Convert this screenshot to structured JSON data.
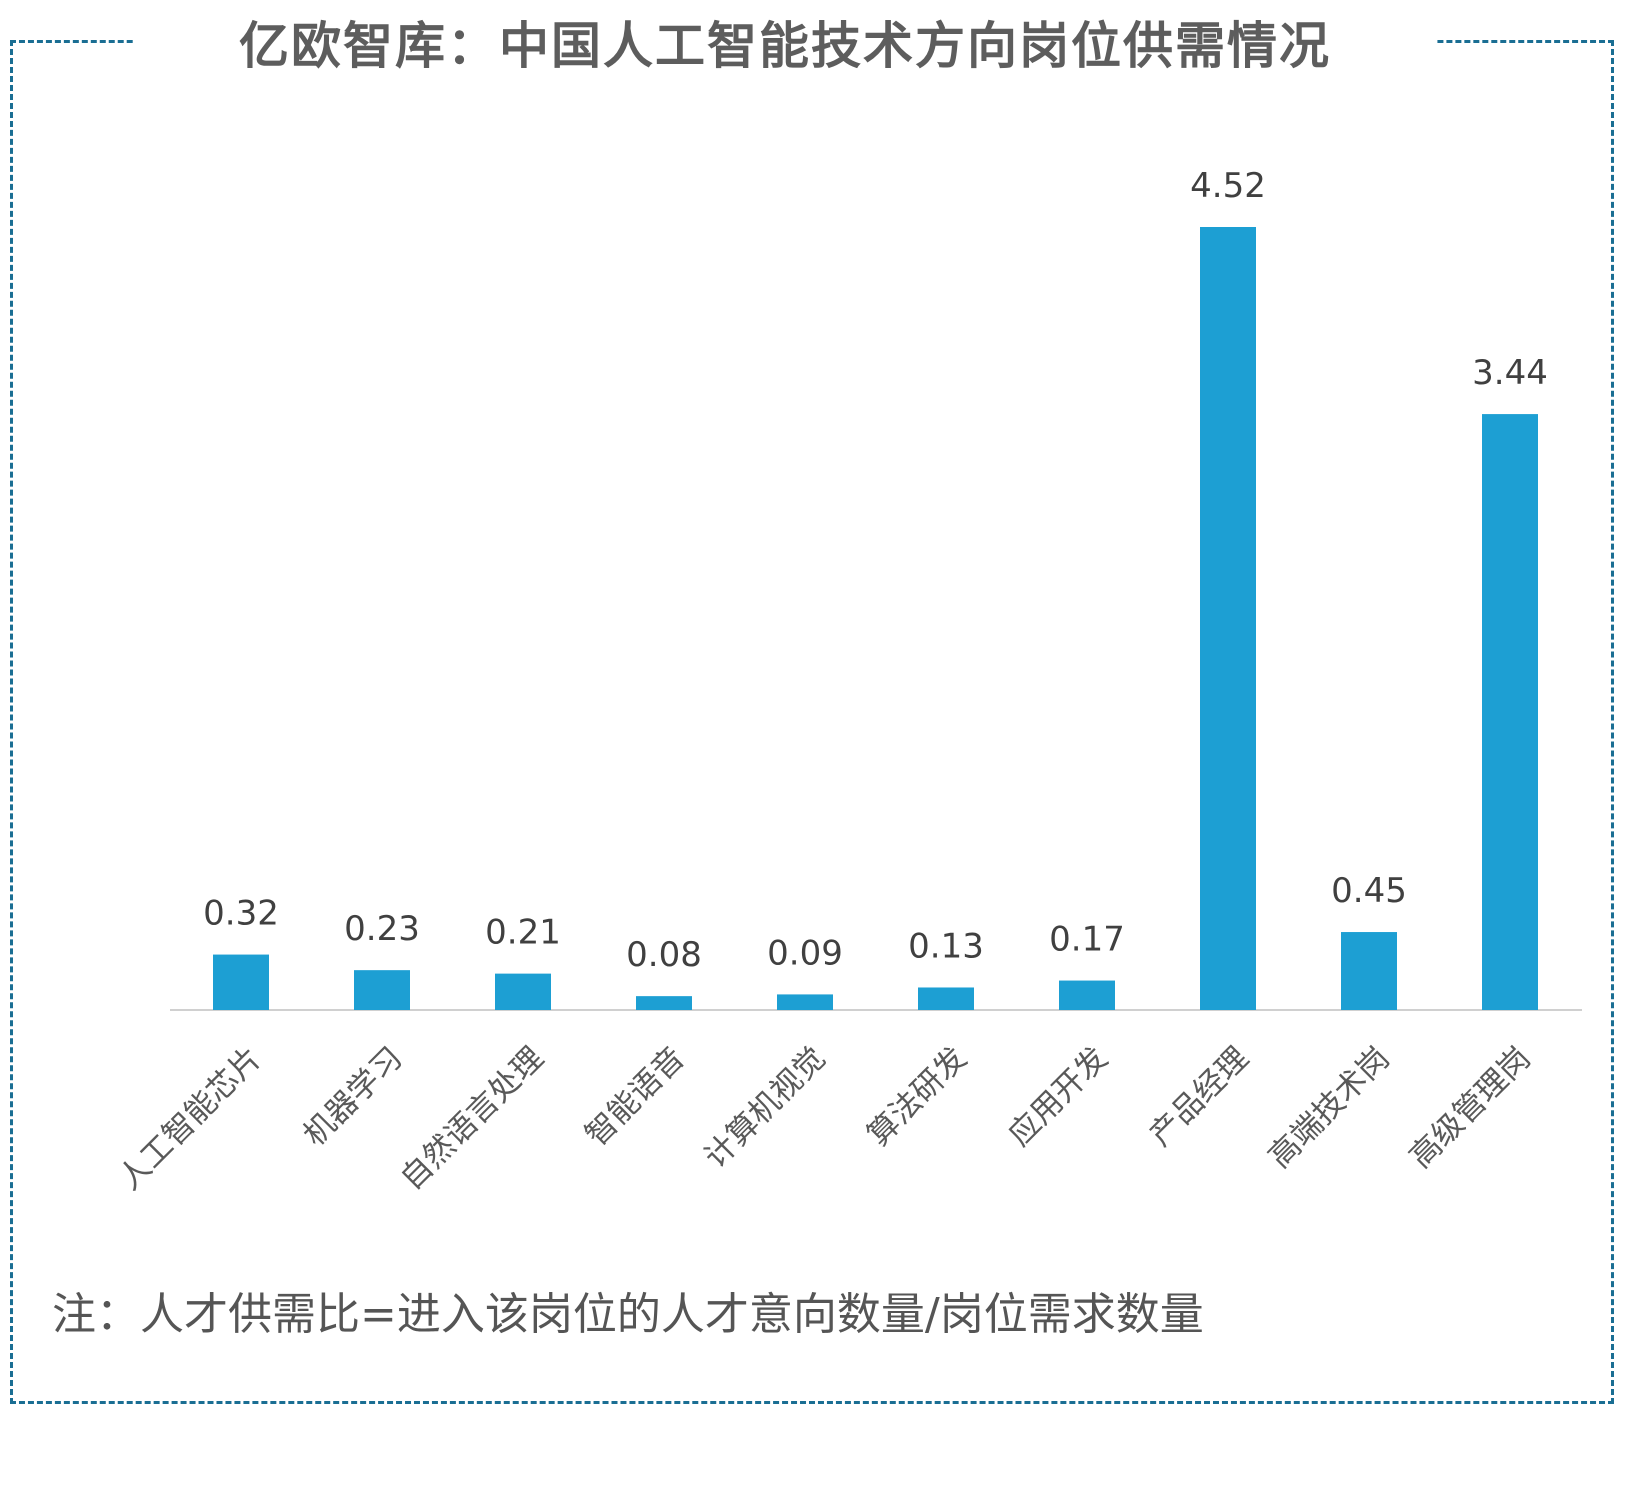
{
  "chart_data": {
    "type": "bar",
    "title": "亿欧智库：中国人工智能技术方向岗位供需情况",
    "categories": [
      "人工智能芯片",
      "机器学习",
      "自然语言处理",
      "智能语音",
      "计算机视觉",
      "算法研发",
      "应用开发",
      "产品经理",
      "高端技术岗",
      "高级管理岗"
    ],
    "values": [
      0.32,
      0.23,
      0.21,
      0.08,
      0.09,
      0.13,
      0.17,
      4.52,
      0.45,
      3.44
    ],
    "value_labels": [
      "0.32",
      "0.23",
      "0.21",
      "0.08",
      "0.09",
      "0.13",
      "0.17",
      "4.52",
      "0.45",
      "3.44"
    ],
    "xlabel": "",
    "ylabel": "",
    "ylim": [
      0,
      4.52
    ],
    "grid": false,
    "bar_color": "#1d9fd3",
    "note": "注：人才供需比=进入该岗位的人才意向数量/岗位需求数量"
  }
}
